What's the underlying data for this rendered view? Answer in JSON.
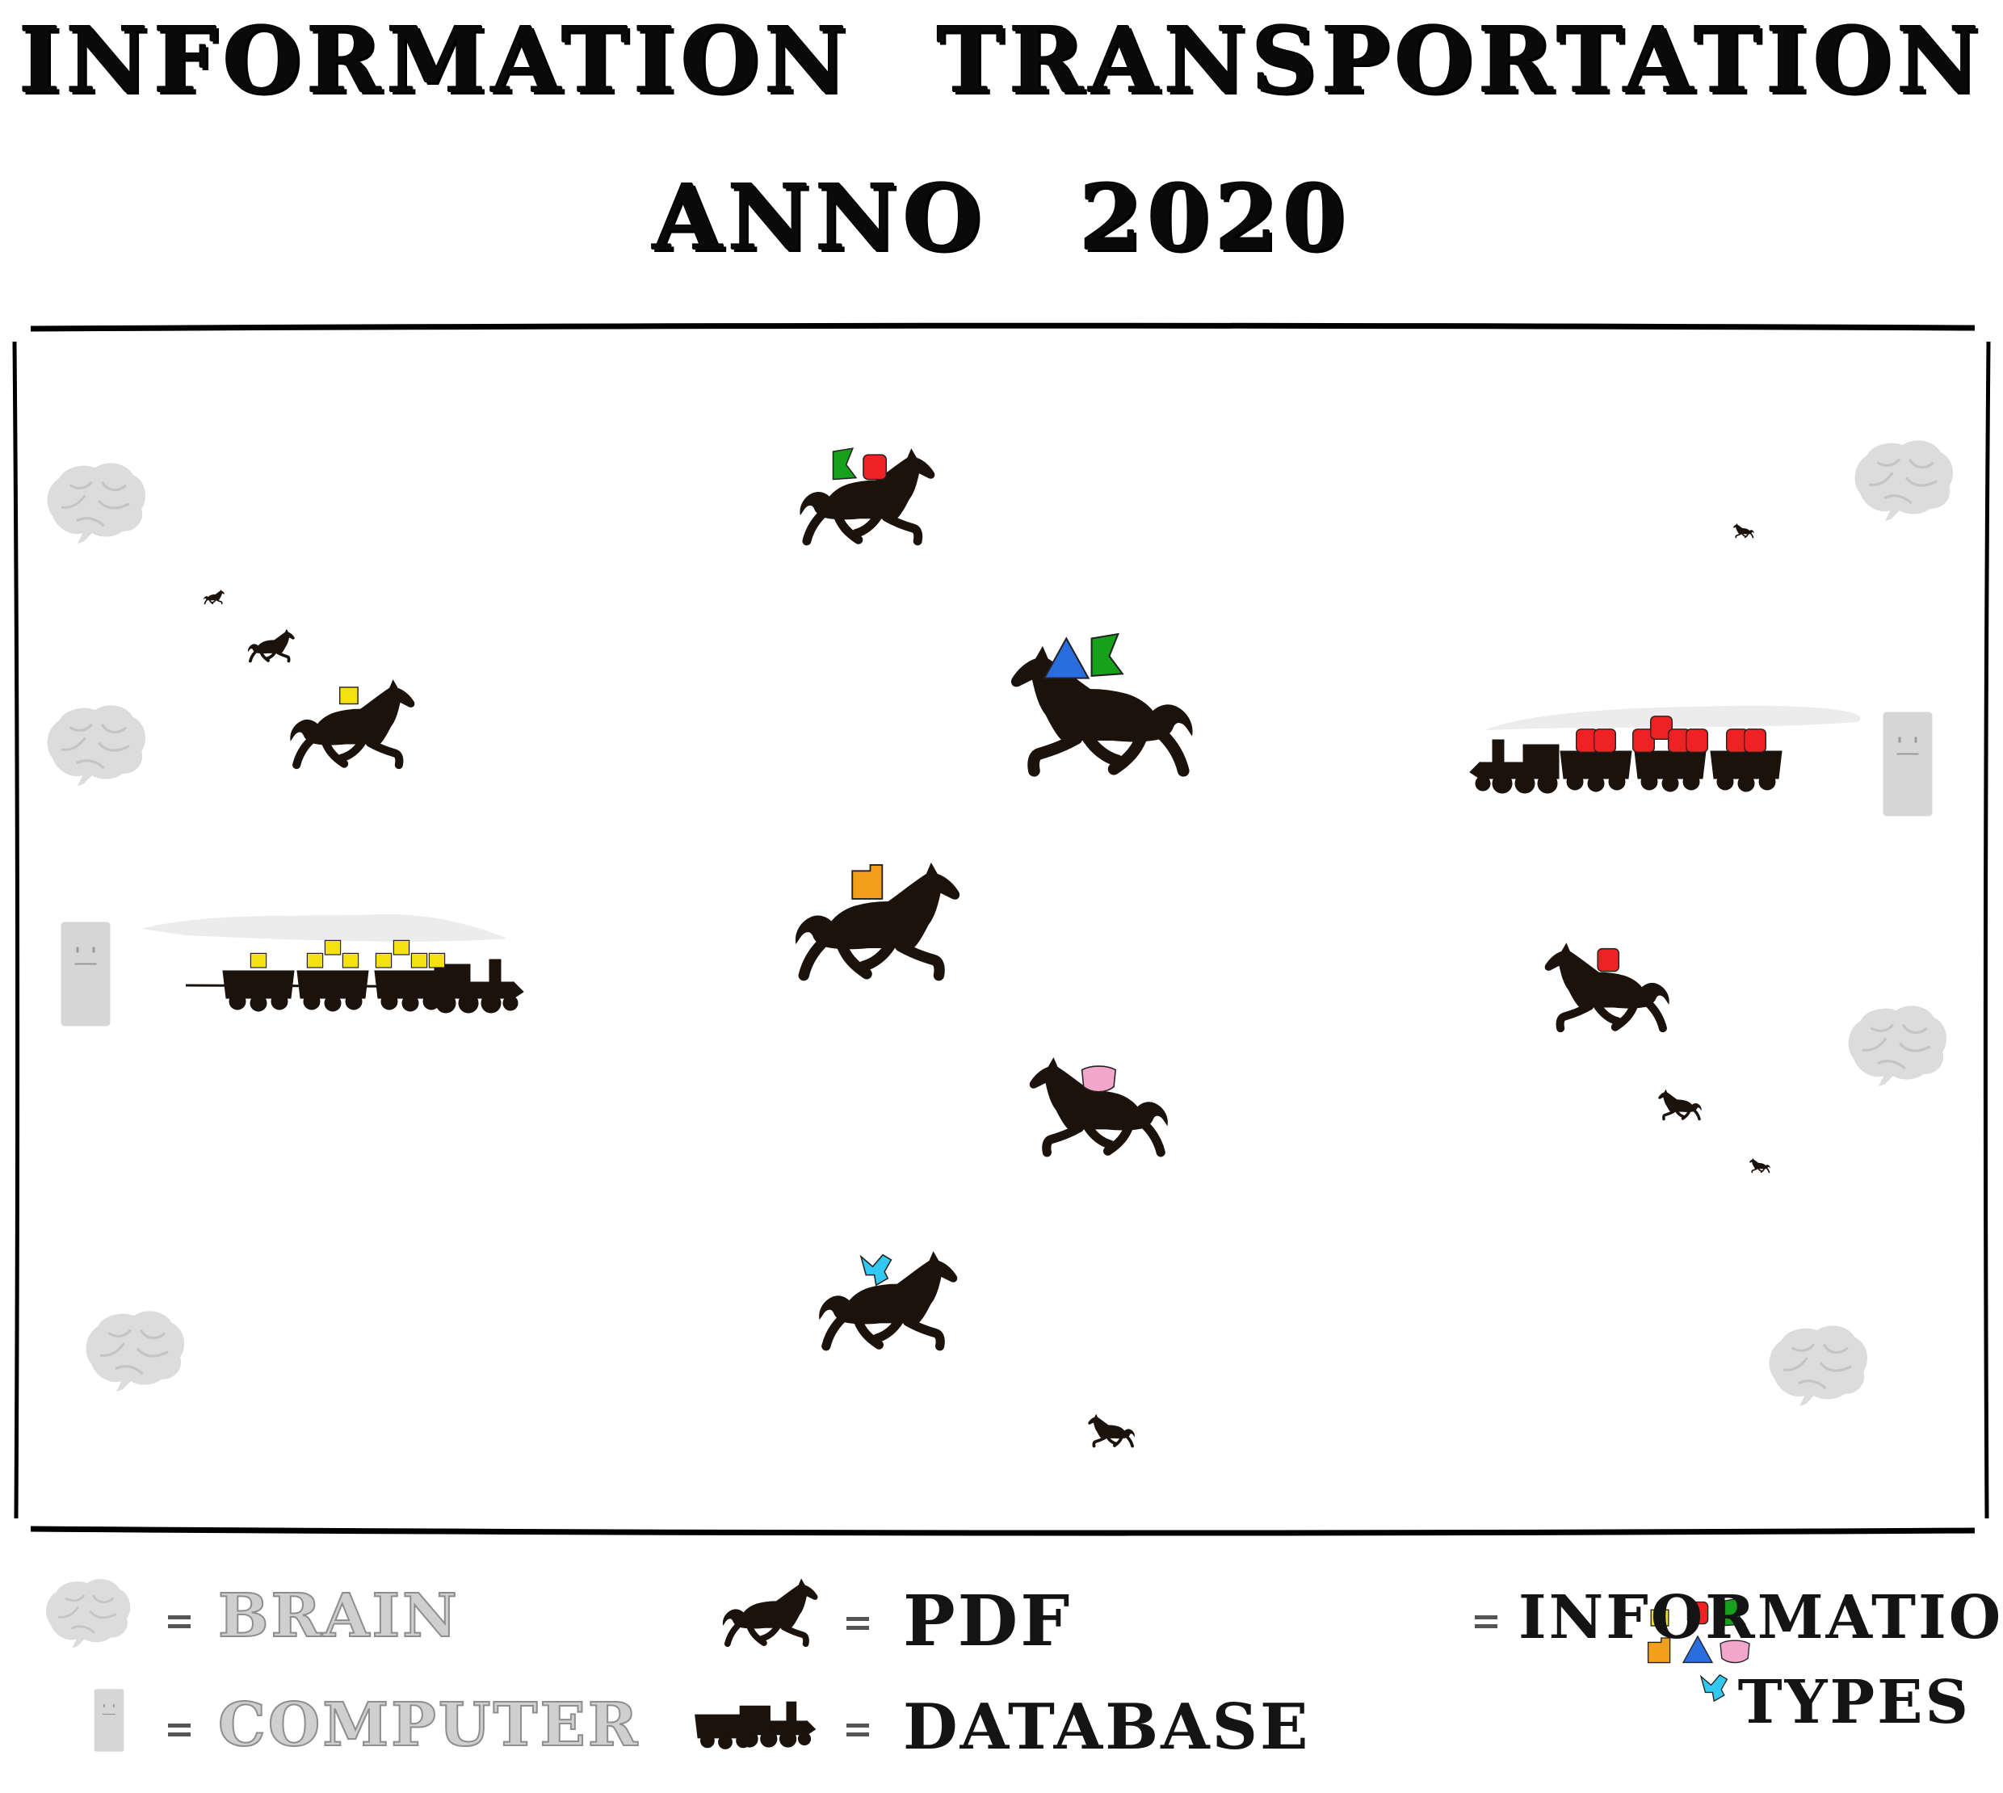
{
  "title": {
    "line1": "INFORMATION TRANSPORTATION",
    "line2": "ANNO 2020"
  },
  "legend": {
    "brain": {
      "icon": "brain-icon",
      "label": "BRAIN"
    },
    "computer": {
      "icon": "computer-icon",
      "label": "COMPUTER"
    },
    "pdf": {
      "icon": "horse-icon",
      "label": "PDF"
    },
    "database": {
      "icon": "train-icon",
      "label": "DATABASE"
    },
    "information_types": {
      "icon": "shapes-icon",
      "line1": "INFORMATION",
      "line2": "TYPES"
    },
    "separator": "="
  },
  "colors": {
    "horse": "#1c120c",
    "brain": "#dcdcdc",
    "computer": "#d6d6d6",
    "frame": "#000000",
    "yellow": "#f5e010",
    "red": "#ee2222",
    "green": "#16a01c",
    "blue": "#2a6de0",
    "orange": "#f2a019",
    "pink": "#f2a6cc",
    "cyan": "#33c8f2"
  },
  "diagram": {
    "horses": [
      {
        "cargo": [
          "green",
          "red"
        ]
      },
      {
        "cargo": [
          "blue",
          "green"
        ]
      },
      {
        "cargo": [
          "yellow"
        ]
      },
      {
        "cargo": [
          "orange"
        ]
      },
      {
        "cargo": [
          "pink"
        ]
      },
      {
        "cargo": [
          "cyan"
        ]
      },
      {
        "cargo": [
          "red"
        ]
      },
      {
        "cargo": []
      },
      {
        "cargo": []
      },
      {
        "cargo": []
      },
      {
        "cargo": []
      },
      {
        "cargo": []
      },
      {
        "cargo": []
      },
      {
        "cargo": []
      }
    ],
    "trains": [
      {
        "cargo": "yellow",
        "direction": "right"
      },
      {
        "cargo": "red",
        "direction": "left"
      }
    ],
    "brains": 6,
    "computers": 2
  }
}
